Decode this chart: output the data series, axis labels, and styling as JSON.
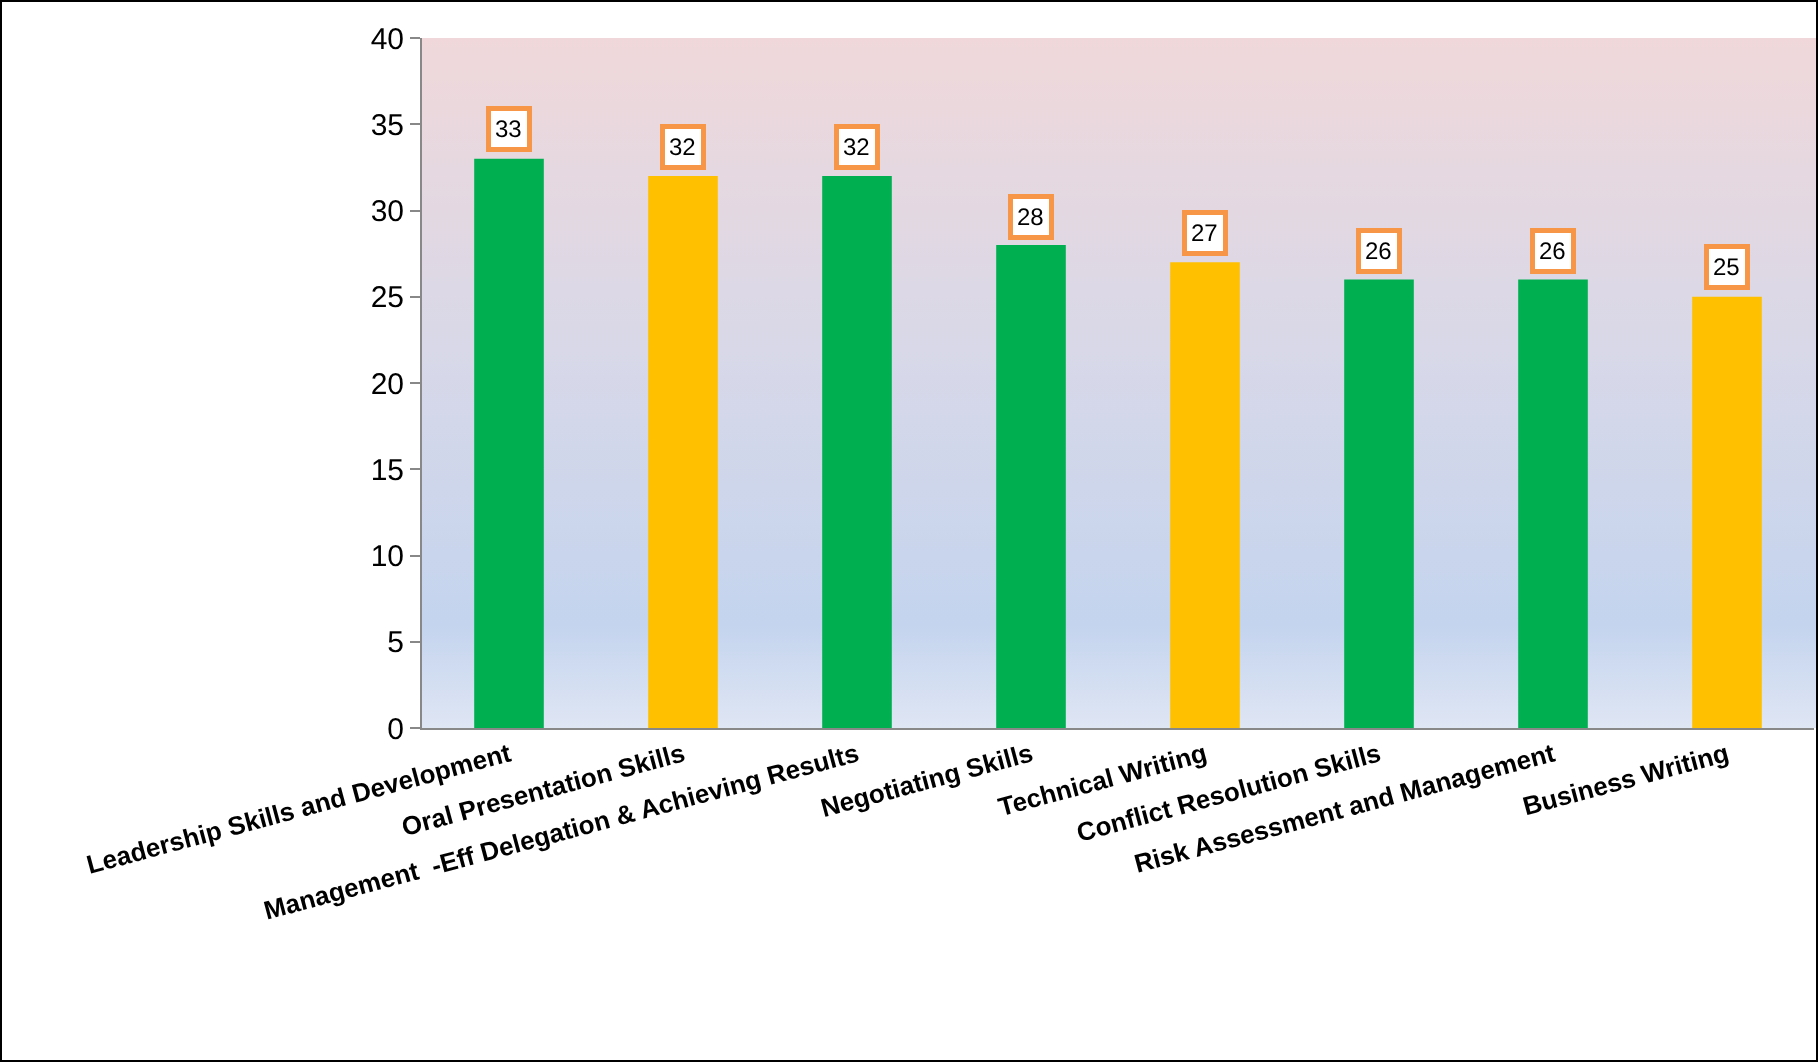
{
  "chart_data": {
    "type": "bar",
    "categories": [
      "Leadership Skills and Development",
      "Oral Presentation Skills",
      "Management  -Eff Delegation & Achieving Results",
      "Negotiating Skills",
      "Technical Writing",
      "Conflict Resolution Skills",
      "Risk Assessment and Management",
      "Business Writing"
    ],
    "values": [
      33,
      32,
      32,
      28,
      27,
      26,
      26,
      25
    ],
    "colors": [
      "#00b050",
      "#ffc000",
      "#00b050",
      "#00b050",
      "#ffc000",
      "#00b050",
      "#00b050",
      "#ffc000"
    ],
    "ylim": [
      0,
      40
    ],
    "yticks": [
      0,
      5,
      10,
      15,
      20,
      25,
      30,
      35,
      40
    ],
    "data_labels": true
  }
}
